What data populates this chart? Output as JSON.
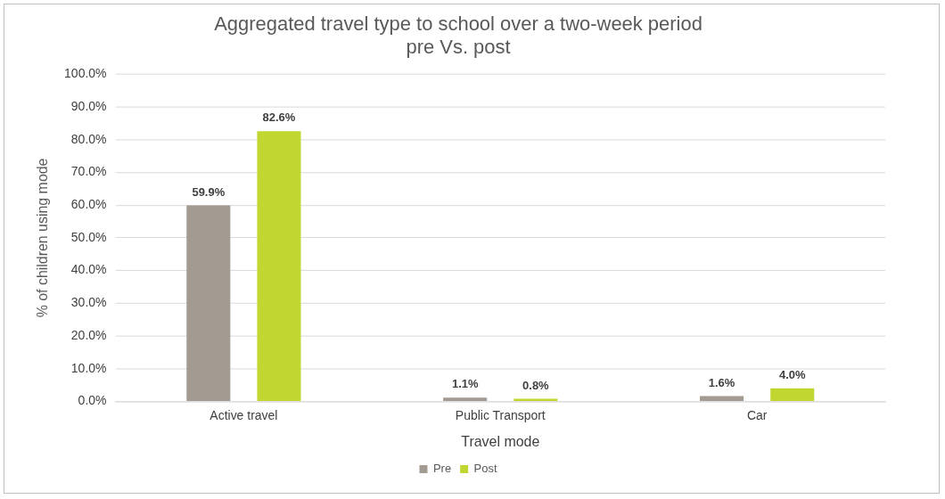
{
  "chart_data": {
    "type": "bar",
    "title": [
      "Aggregated travel type to school over a two-week period",
      "pre Vs. post"
    ],
    "xlabel": "Travel mode",
    "ylabel": "% of children using mode",
    "categories": [
      "Active travel",
      "Public Transport",
      "Car"
    ],
    "series": [
      {
        "name": "Pre",
        "color": "#a39a92",
        "values": [
          59.9,
          1.1,
          1.6
        ],
        "value_labels": [
          "59.9%",
          "1.1%",
          "1.6%"
        ]
      },
      {
        "name": "Post",
        "color": "#c1d631",
        "values": [
          82.6,
          0.8,
          4.0
        ],
        "value_labels": [
          "82.6%",
          "0.8%",
          "4.0%"
        ]
      }
    ],
    "ylim": [
      0,
      100
    ],
    "yticks": [
      {
        "value": 0,
        "label": "0.0%"
      },
      {
        "value": 10,
        "label": "10.0%"
      },
      {
        "value": 20,
        "label": "20.0%"
      },
      {
        "value": 30,
        "label": "30.0%"
      },
      {
        "value": 40,
        "label": "40.0%"
      },
      {
        "value": 50,
        "label": "50.0%"
      },
      {
        "value": 60,
        "label": "60.0%"
      },
      {
        "value": 70,
        "label": "70.0%"
      },
      {
        "value": 80,
        "label": "80.0%"
      },
      {
        "value": 90,
        "label": "90.0%"
      },
      {
        "value": 100,
        "label": "100.0%"
      }
    ],
    "grid": "y",
    "legend": "bottom"
  }
}
